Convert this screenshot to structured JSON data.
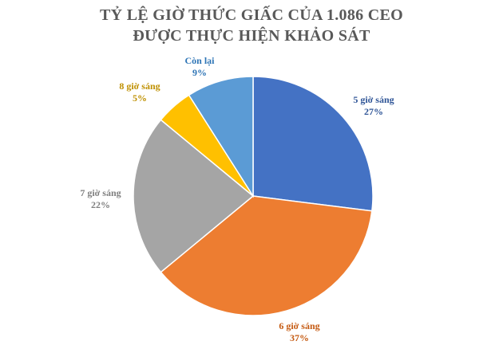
{
  "chart_data": {
    "type": "pie",
    "title": [
      "TỶ LỆ GIỜ THỨC GIẤC CỦA 1.086 CEO",
      "ĐƯỢC THỰC HIỆN KHẢO SÁT"
    ],
    "slices": [
      {
        "label": "5 giờ sáng",
        "value": 27,
        "value_label": "27%",
        "color": "#4472C4"
      },
      {
        "label": "6 giờ sáng",
        "value": 37,
        "value_label": "37%",
        "color": "#ED7D31"
      },
      {
        "label": "7 giờ sáng",
        "value": 22,
        "value_label": "22%",
        "color": "#A5A5A5"
      },
      {
        "label": "8 giờ sáng",
        "value": 5,
        "value_label": "5%",
        "color": "#FFC000"
      },
      {
        "label": "Còn lại",
        "value": 9,
        "value_label": "9%",
        "color": "#5B9BD5"
      }
    ],
    "label_colors": [
      "#2F5597",
      "#C55A11",
      "#7F7F7F",
      "#BF9000",
      "#2E75B6"
    ],
    "start_angle": "12 o'clock",
    "direction": "clockwise",
    "legend": "none",
    "data_labels": "outside, category name and percentage"
  }
}
